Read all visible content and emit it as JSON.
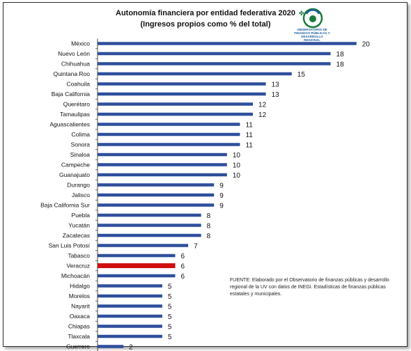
{
  "chart_data": {
    "type": "bar",
    "orientation": "horizontal",
    "title": "Autonomía financiera por entidad federativa 2020",
    "subtitle": "(Ingresos propios como % del total)",
    "categories": [
      "México",
      "Nuevo León",
      "Chihuahua",
      "Quintana Roo",
      "Coahuila",
      "Baja California",
      "Querétaro",
      "Tamaulipas",
      "Aguascalientes",
      "Colima",
      "Sonora",
      "Sinaloa",
      "Campeche",
      "Guanajuato",
      "Durango",
      "Jalisco",
      "Baja California Sur",
      "Puebla",
      "Yucatán",
      "Zacatecas",
      "San Luis Potosí",
      "Tabasco",
      "Veracruz",
      "Michoacán",
      "Hidalgo",
      "Morelos",
      "Nayarit",
      "Oaxaca",
      "Chiapas",
      "Tlaxcala",
      "Guerrero"
    ],
    "values": [
      20,
      18,
      18,
      15,
      13,
      13,
      12,
      12,
      11,
      11,
      11,
      10,
      10,
      10,
      9,
      9,
      9,
      8,
      8,
      8,
      7,
      6,
      6,
      6,
      5,
      5,
      5,
      5,
      5,
      5,
      2
    ],
    "highlight": "Veracruz",
    "xlim": [
      0,
      20.5
    ],
    "grid": false,
    "colors": {
      "bar": "#2e4f9c",
      "highlight": "#d01010",
      "axis": "#444444"
    }
  },
  "logo": {
    "text": "OBSERVATORIO DE FINANZAS PÚBLICAS Y DESARROLLO REGIONAL"
  },
  "note": "FUENTE: Elaborado por el Observatorio de finanzas públicas y desarrollo regional de la UV con datos de  INEGI. Estadísticas de finanzas públicas estatales y municipales."
}
